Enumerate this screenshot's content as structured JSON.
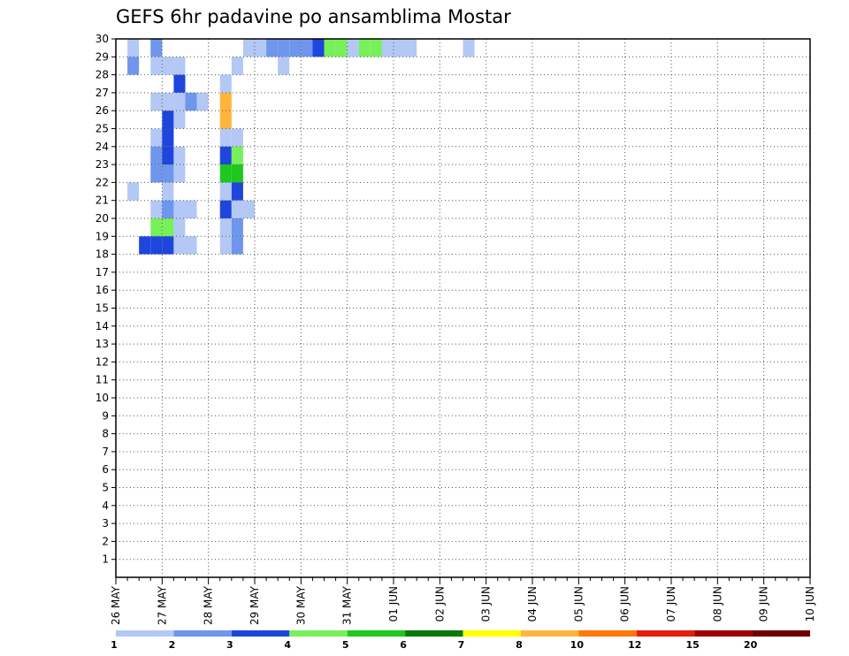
{
  "chart_data": {
    "type": "heatmap",
    "title": "GEFS 6hr padavine po ansamblima Mostar",
    "xlabel": "",
    "ylabel": "",
    "y_ticks": [
      "1",
      "2",
      "3",
      "4",
      "5",
      "6",
      "7",
      "8",
      "9",
      "10",
      "11",
      "12",
      "13",
      "14",
      "15",
      "16",
      "17",
      "18",
      "19",
      "20",
      "21",
      "22",
      "23",
      "24",
      "25",
      "26",
      "27",
      "28",
      "29",
      "30"
    ],
    "x_ticks": [
      "26 MAY",
      "27 MAY",
      "28 MAY",
      "29 MAY",
      "30 MAY",
      "31 MAY",
      "01 JUN",
      "02 JUN",
      "03 JUN",
      "04 JUN",
      "05 JUN",
      "06 JUN",
      "07 JUN",
      "08 JUN",
      "09 JUN",
      "10 JUN"
    ],
    "x_range": [
      "26 MAY 00h",
      "10 JUN 00h"
    ],
    "time_step_hours": 6,
    "y_range": [
      0,
      30
    ],
    "grid": true,
    "colorbar": {
      "position": "bottom",
      "tick_labels": [
        "1",
        "2",
        "3",
        "4",
        "5",
        "6",
        "7",
        "8",
        "10",
        "12",
        "15",
        "20"
      ],
      "colors": [
        "#b4c8f5",
        "#6e96ec",
        "#1e46dc",
        "#78f05a",
        "#1ec81e",
        "#0a780a",
        "#ffff00",
        "#ffb43c",
        "#ff780a",
        "#e61e0a",
        "#a00000",
        "#6e0000"
      ]
    },
    "cells": [
      {
        "m": 30,
        "t": [
          [
            1,
            2
          ],
          [
            3,
            4
          ],
          [
            11,
            12
          ],
          [
            12,
            13
          ],
          [
            13,
            14
          ],
          [
            14,
            15
          ],
          [
            15,
            16
          ],
          [
            16,
            17
          ],
          [
            17,
            18
          ],
          [
            18,
            19
          ],
          [
            19,
            20
          ],
          [
            20,
            21
          ],
          [
            21,
            22
          ],
          [
            22,
            23
          ],
          [
            23,
            24
          ],
          [
            24,
            25
          ],
          [
            25,
            26
          ],
          [
            30,
            31
          ]
        ],
        "l": [
          1,
          2,
          1,
          1,
          2,
          2,
          2,
          2,
          3,
          4,
          4,
          1,
          4,
          4,
          1,
          1,
          1,
          1
        ]
      },
      {
        "m": 29,
        "t": [
          [
            1,
            2
          ],
          [
            3,
            4
          ],
          [
            4,
            5
          ],
          [
            5,
            6
          ],
          [
            10,
            11
          ],
          [
            14,
            15
          ]
        ],
        "l": [
          2,
          1,
          1,
          1,
          1,
          1
        ]
      },
      {
        "m": 28,
        "t": [
          [
            5,
            6
          ],
          [
            9,
            10
          ]
        ],
        "l": [
          3,
          1
        ]
      },
      {
        "m": 27,
        "t": [
          [
            3,
            4
          ],
          [
            4,
            5
          ],
          [
            5,
            6
          ],
          [
            6,
            7
          ],
          [
            7,
            8
          ],
          [
            9,
            10
          ]
        ],
        "l": [
          1,
          1,
          1,
          2,
          1,
          8
        ]
      },
      {
        "m": 26,
        "t": [
          [
            4,
            5
          ],
          [
            5,
            6
          ],
          [
            9,
            10
          ]
        ],
        "l": [
          3,
          1,
          8
        ]
      },
      {
        "m": 25,
        "t": [
          [
            3,
            4
          ],
          [
            4,
            5
          ],
          [
            9,
            10
          ],
          [
            10,
            11
          ]
        ],
        "l": [
          1,
          3,
          1,
          1
        ]
      },
      {
        "m": 24,
        "t": [
          [
            3,
            4
          ],
          [
            4,
            5
          ],
          [
            5,
            6
          ],
          [
            9,
            10
          ],
          [
            10,
            11
          ]
        ],
        "l": [
          2,
          3,
          1,
          3,
          4
        ]
      },
      {
        "m": 23,
        "t": [
          [
            3,
            4
          ],
          [
            4,
            5
          ],
          [
            5,
            6
          ],
          [
            9,
            10
          ],
          [
            10,
            11
          ]
        ],
        "l": [
          2,
          2,
          1,
          5,
          5
        ]
      },
      {
        "m": 22,
        "t": [
          [
            1,
            2
          ],
          [
            4,
            5
          ],
          [
            9,
            10
          ],
          [
            10,
            11
          ]
        ],
        "l": [
          1,
          1,
          1,
          3
        ]
      },
      {
        "m": 21,
        "t": [
          [
            3,
            4
          ],
          [
            4,
            5
          ],
          [
            5,
            6
          ],
          [
            6,
            7
          ],
          [
            9,
            10
          ],
          [
            10,
            11
          ],
          [
            11,
            12
          ]
        ],
        "l": [
          1,
          2,
          1,
          1,
          3,
          1,
          1
        ]
      },
      {
        "m": 20,
        "t": [
          [
            3,
            4
          ],
          [
            4,
            5
          ],
          [
            5,
            6
          ],
          [
            9,
            10
          ],
          [
            10,
            11
          ]
        ],
        "l": [
          4,
          4,
          1,
          1,
          2
        ]
      },
      {
        "m": 19,
        "t": [
          [
            2,
            3
          ],
          [
            3,
            4
          ],
          [
            4,
            5
          ],
          [
            5,
            6
          ],
          [
            6,
            7
          ],
          [
            9,
            10
          ],
          [
            10,
            11
          ]
        ],
        "l": [
          3,
          3,
          3,
          1,
          1,
          1,
          2
        ]
      }
    ]
  }
}
